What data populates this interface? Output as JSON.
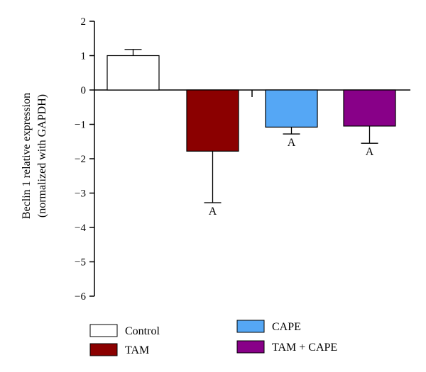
{
  "chart_data": {
    "type": "bar",
    "ylabel_line1": "Beclin 1 relative expression",
    "ylabel_line2": "(normalized with GAPDH)",
    "ylim": [
      -6,
      2
    ],
    "yticks": [
      2,
      1,
      0,
      -1,
      -2,
      -3,
      -4,
      -5,
      -6
    ],
    "grid": false,
    "legend_position": "bottom",
    "series": [
      {
        "name": "Control",
        "value": 1.0,
        "error": 0.18,
        "color": "#ffffff",
        "annotation": ""
      },
      {
        "name": "TAM",
        "value": -1.78,
        "error": 1.5,
        "color": "#8b0000",
        "annotation": "A"
      },
      {
        "name": "CAPE",
        "value": -1.08,
        "error": 0.2,
        "color": "#55a7f5",
        "annotation": "A"
      },
      {
        "name": "TAM + CAPE",
        "value": -1.05,
        "error": 0.5,
        "color": "#880088",
        "annotation": "A"
      }
    ],
    "legend": [
      {
        "label": "Control",
        "color": "#ffffff"
      },
      {
        "label": "TAM",
        "color": "#8b0000"
      },
      {
        "label": "CAPE",
        "color": "#55a7f5"
      },
      {
        "label": "TAM + CAPE",
        "color": "#880088"
      }
    ]
  }
}
